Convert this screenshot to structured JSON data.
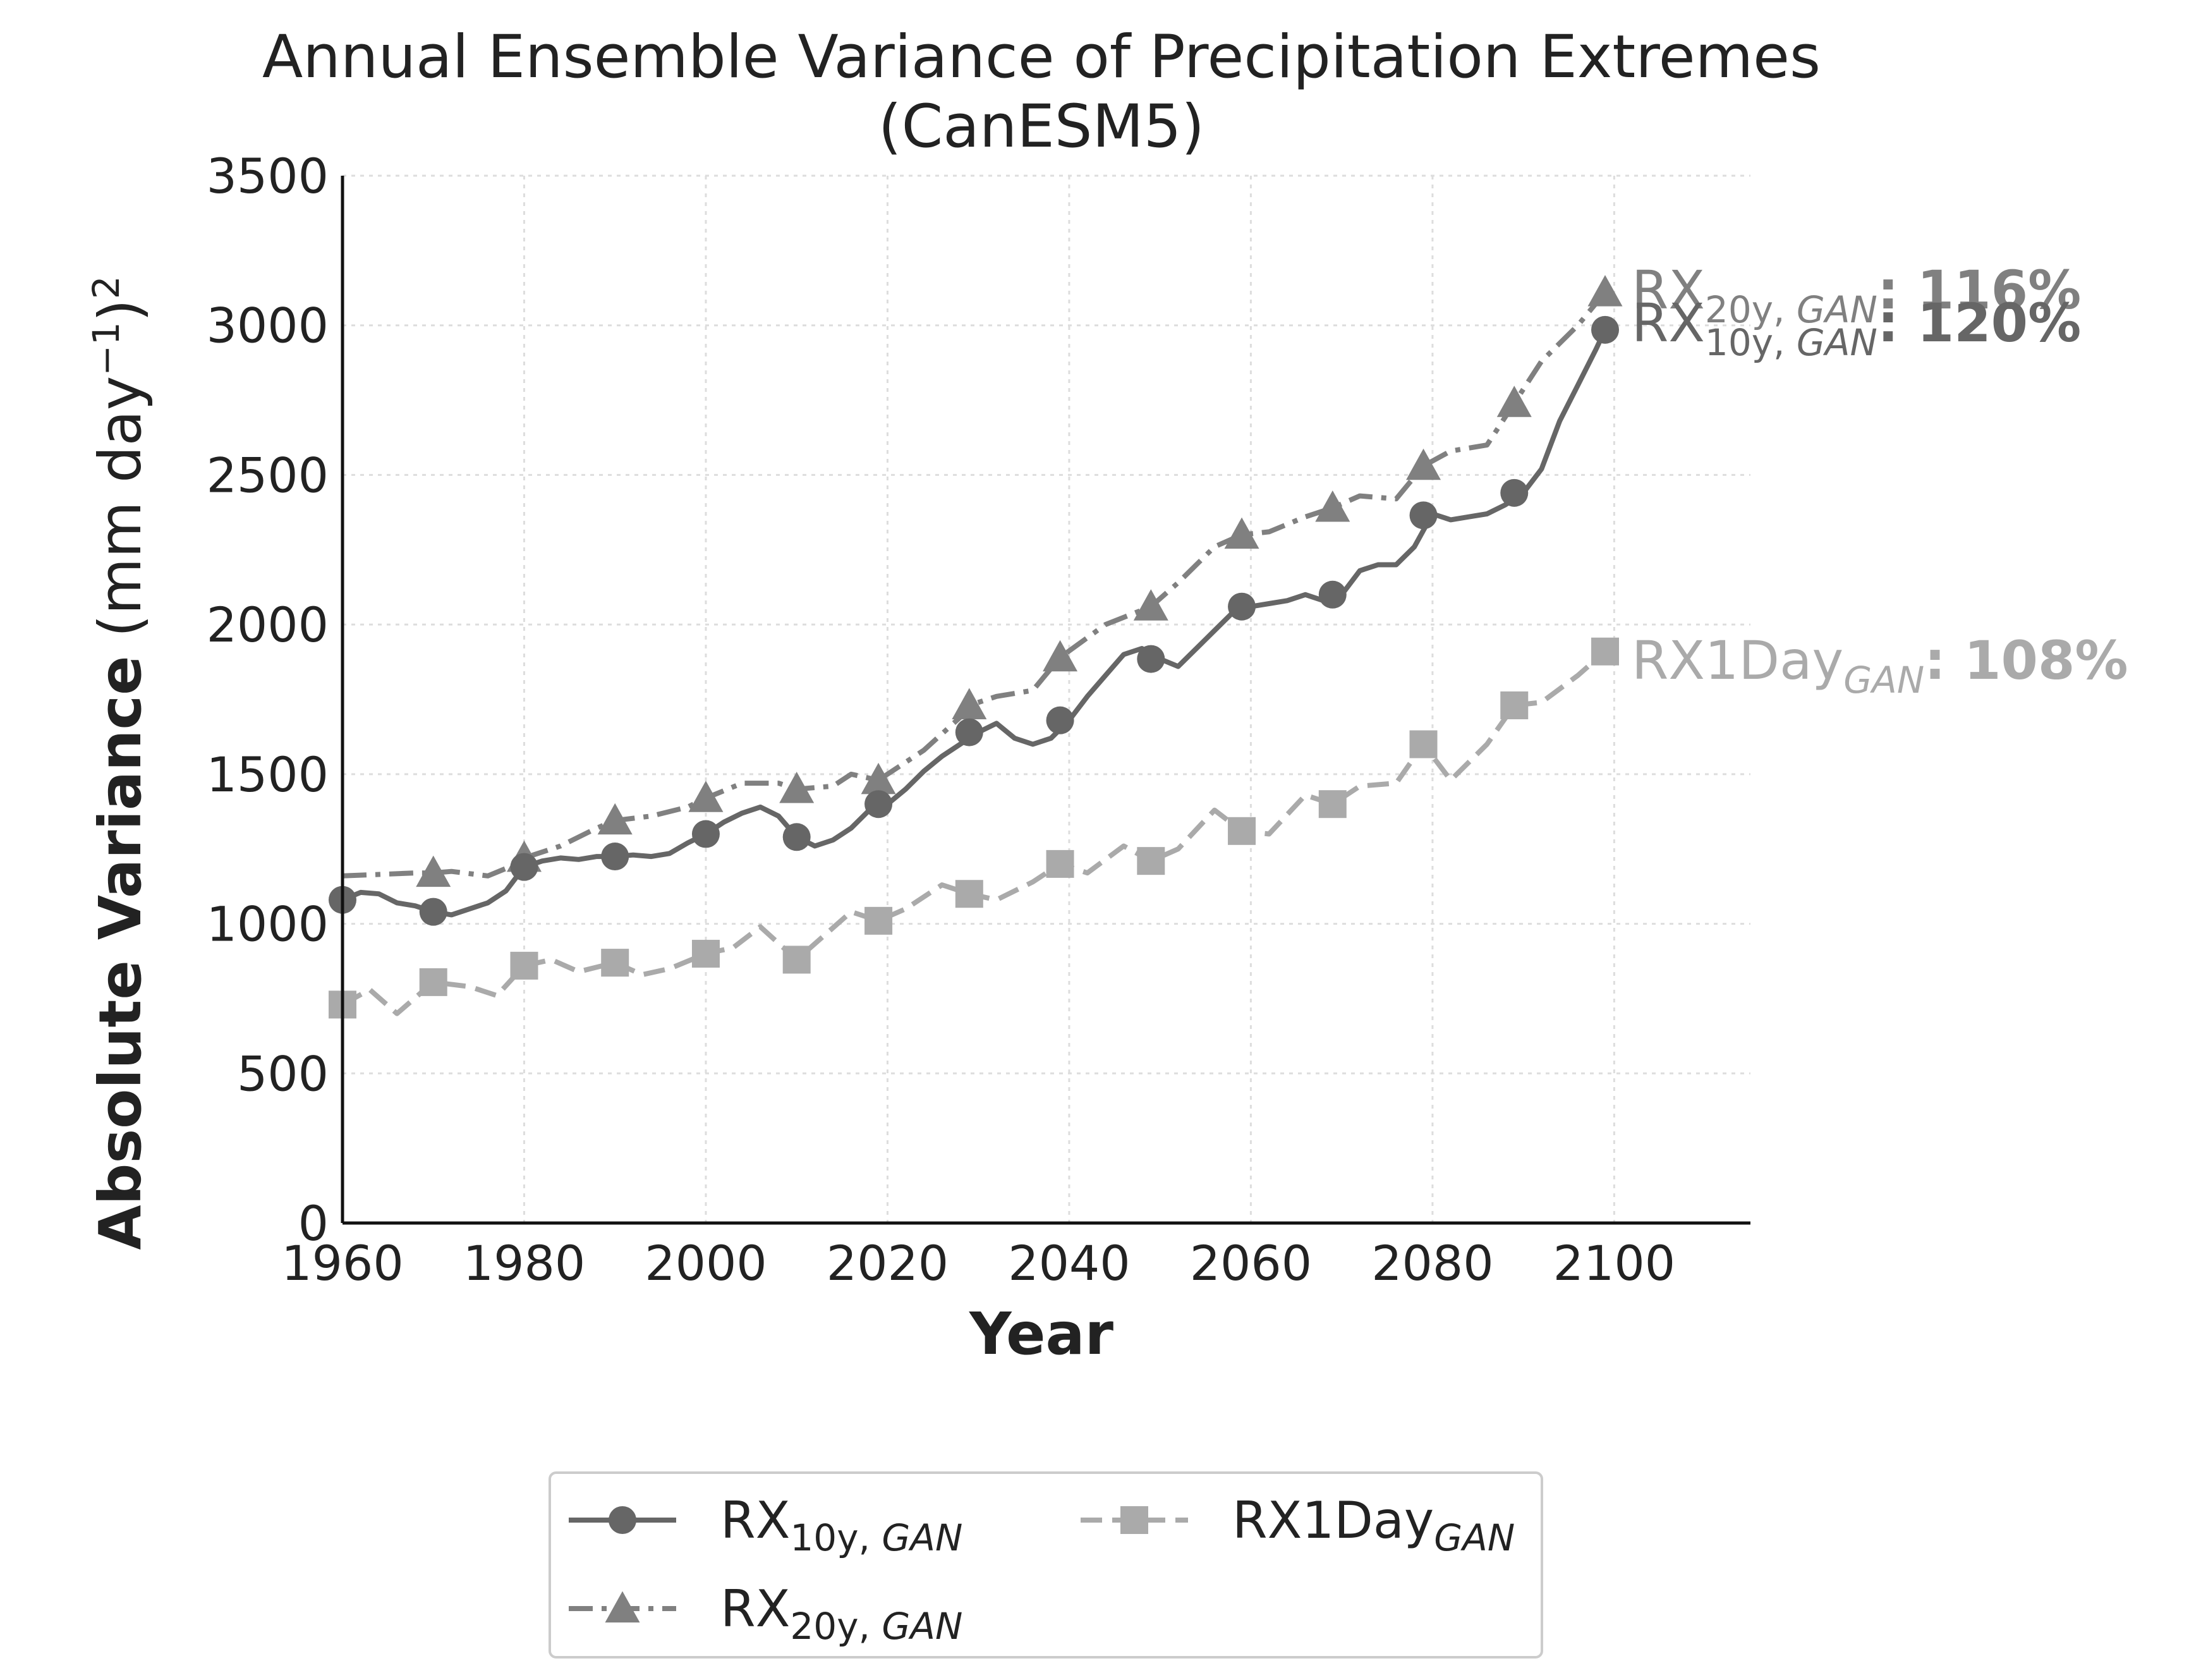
{
  "chart_data": {
    "type": "line",
    "title": "Annual Ensemble Variance of Precipitation Extremes",
    "subtitle": "(CanESM5)",
    "xlabel": "Year",
    "ylabel_bold": "Absolute Variance",
    "ylabel_unit": "(mm day",
    "ylabel_exp": "−1",
    "ylabel_close": ")",
    "ylabel_sq": "2",
    "xlim": [
      1960,
      2115
    ],
    "ylim": [
      0,
      3500
    ],
    "xticks": [
      1960,
      1980,
      2000,
      2020,
      2040,
      2060,
      2080,
      2100
    ],
    "yticks": [
      0,
      500,
      1000,
      1500,
      2000,
      2500,
      3000,
      3500
    ],
    "grid": true,
    "legend_placement": "below-center",
    "series": [
      {
        "name": "RX10y, GAN",
        "name_main": "RX",
        "name_sub": "10y, ",
        "name_subi": "GAN",
        "color": "#666666",
        "dash": "solid",
        "marker": "circle",
        "end_pct": ": 120%",
        "x": [
          1960,
          1962,
          1964,
          1966,
          1968,
          1970,
          1972,
          1974,
          1976,
          1978,
          1980,
          1982,
          1984,
          1986,
          1988,
          1990,
          1992,
          1994,
          1996,
          1998,
          2000,
          2002,
          2004,
          2006,
          2008,
          2010,
          2012,
          2014,
          2016,
          2018,
          2020,
          2022,
          2024,
          2026,
          2028,
          2030,
          2032,
          2034,
          2036,
          2038,
          2040,
          2042,
          2044,
          2046,
          2048,
          2050,
          2052,
          2054,
          2056,
          2058,
          2060,
          2062,
          2064,
          2066,
          2068,
          2070,
          2072,
          2074,
          2076,
          2078,
          2080,
          2082,
          2084,
          2086,
          2088,
          2090,
          2092,
          2094,
          2096,
          2098,
          2099
        ],
        "y": [
          1080,
          1105,
          1100,
          1070,
          1060,
          1040,
          1030,
          1050,
          1070,
          1110,
          1190,
          1210,
          1220,
          1215,
          1225,
          1225,
          1230,
          1225,
          1235,
          1270,
          1300,
          1340,
          1370,
          1390,
          1360,
          1290,
          1260,
          1280,
          1320,
          1380,
          1400,
          1450,
          1510,
          1560,
          1600,
          1640,
          1670,
          1620,
          1600,
          1620,
          1680,
          1760,
          1830,
          1900,
          1920,
          1885,
          1860,
          1920,
          1980,
          2040,
          2060,
          2070,
          2080,
          2100,
          2080,
          2100,
          2180,
          2200,
          2200,
          2260,
          2370,
          2350,
          2360,
          2370,
          2400,
          2440,
          2520,
          2680,
          2800,
          2920,
          2985
        ],
        "markers_x": [
          1960,
          1970,
          1980,
          1990,
          2000,
          2010,
          2019,
          2029,
          2039,
          2049,
          2059,
          2069,
          2079,
          2089,
          2099
        ],
        "markers_y": [
          1080,
          1040,
          1190,
          1225,
          1300,
          1290,
          1400,
          1640,
          1680,
          1885,
          2060,
          2100,
          2365,
          2440,
          2985
        ]
      },
      {
        "name": "RX20y, GAN",
        "name_main": "RX",
        "name_sub": "20y, ",
        "name_subi": "GAN",
        "color": "#808080",
        "dash": "dashdot",
        "marker": "triangle",
        "end_pct": ": 116%",
        "x": [
          1960,
          1964,
          1968,
          1970,
          1972,
          1976,
          1978,
          1980,
          1984,
          1988,
          1990,
          1994,
          1998,
          2000,
          2004,
          2008,
          2010,
          2014,
          2016,
          2019,
          2024,
          2028,
          2029,
          2032,
          2036,
          2039,
          2044,
          2049,
          2052,
          2056,
          2059,
          2062,
          2066,
          2069,
          2072,
          2076,
          2079,
          2082,
          2086,
          2089,
          2092,
          2096,
          2099
        ],
        "y": [
          1160,
          1165,
          1170,
          1170,
          1175,
          1160,
          1185,
          1220,
          1260,
          1320,
          1345,
          1360,
          1390,
          1420,
          1470,
          1470,
          1450,
          1460,
          1500,
          1480,
          1580,
          1690,
          1730,
          1760,
          1780,
          1890,
          2000,
          2060,
          2140,
          2260,
          2300,
          2310,
          2360,
          2390,
          2430,
          2420,
          2530,
          2580,
          2600,
          2740,
          2880,
          3000,
          3110
        ],
        "markers_x": [
          1970,
          1980,
          1990,
          2000,
          2010,
          2019,
          2029,
          2039,
          2049,
          2059,
          2069,
          2079,
          2089,
          2099
        ],
        "markers_y": [
          1170,
          1220,
          1345,
          1420,
          1450,
          1480,
          1730,
          1890,
          2060,
          2300,
          2390,
          2530,
          2740,
          3110
        ]
      },
      {
        "name": "RX1DayGAN",
        "name_main": "RX1Day",
        "name_sub": "",
        "name_subi": "GAN",
        "color": "#aaaaaa",
        "dash": "dashed",
        "marker": "square",
        "end_pct": ": 108%",
        "x": [
          1960,
          1963,
          1966,
          1970,
          1974,
          1977,
          1980,
          1983,
          1986,
          1990,
          1993,
          1996,
          2000,
          2003,
          2006,
          2010,
          2013,
          2016,
          2019,
          2022,
          2026,
          2029,
          2032,
          2036,
          2039,
          2042,
          2046,
          2049,
          2052,
          2056,
          2059,
          2062,
          2066,
          2069,
          2072,
          2076,
          2079,
          2082,
          2086,
          2089,
          2092,
          2096,
          2099
        ],
        "y": [
          730,
          780,
          700,
          805,
          790,
          760,
          860,
          880,
          840,
          870,
          830,
          850,
          900,
          920,
          990,
          880,
          960,
          1040,
          1010,
          1050,
          1130,
          1100,
          1080,
          1140,
          1200,
          1170,
          1260,
          1210,
          1250,
          1380,
          1310,
          1300,
          1430,
          1400,
          1460,
          1470,
          1600,
          1480,
          1600,
          1730,
          1740,
          1830,
          1910
        ],
        "markers_x": [
          1960,
          1970,
          1980,
          1990,
          2000,
          2010,
          2019,
          2029,
          2039,
          2049,
          2059,
          2069,
          2079,
          2089,
          2099
        ],
        "markers_y": [
          730,
          805,
          860,
          870,
          900,
          880,
          1010,
          1100,
          1200,
          1210,
          1310,
          1400,
          1600,
          1730,
          1910
        ]
      }
    ]
  }
}
